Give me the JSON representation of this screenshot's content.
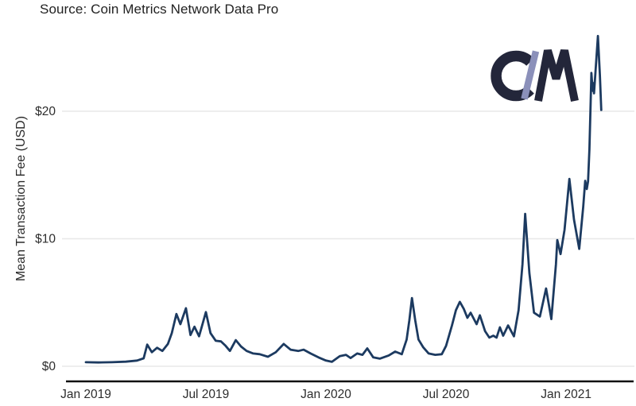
{
  "header": {
    "source_label": "Source: Coin Metrics Network Data Pro"
  },
  "logo": {
    "name": "Coin Metrics",
    "letters": [
      "C",
      "M"
    ],
    "letter_color": "#23263a",
    "slash_color": "#8b90ba"
  },
  "chart_data": {
    "type": "line",
    "ylabel": "Mean Transaction Fee (USD)",
    "xlabel": "",
    "grid": true,
    "legend": "none",
    "line_color": "#1c3a60",
    "grid_color": "#e8e8e8",
    "axis_color": "#111111",
    "tick_color": "#2d2d2d",
    "x_ticks": [
      "Jan 2019",
      "Jul 2019",
      "Jan 2020",
      "Jul 2020",
      "Jan 2021"
    ],
    "x_tick_dates": [
      "2019-01-01",
      "2019-07-01",
      "2020-01-01",
      "2020-07-01",
      "2021-01-01"
    ],
    "y_ticks": [
      "$0",
      "$10",
      "$20"
    ],
    "y_tick_values": [
      0,
      10,
      20
    ],
    "ylim": [
      0,
      27
    ],
    "x_domain": [
      "2019-01-01",
      "2021-02-24"
    ],
    "points": [
      [
        "2019-01-01",
        0.32
      ],
      [
        "2019-01-20",
        0.3
      ],
      [
        "2019-02-10",
        0.32
      ],
      [
        "2019-03-01",
        0.36
      ],
      [
        "2019-03-18",
        0.45
      ],
      [
        "2019-03-28",
        0.62
      ],
      [
        "2019-04-03",
        1.7
      ],
      [
        "2019-04-10",
        1.1
      ],
      [
        "2019-04-18",
        1.45
      ],
      [
        "2019-04-26",
        1.2
      ],
      [
        "2019-05-04",
        1.75
      ],
      [
        "2019-05-10",
        2.6
      ],
      [
        "2019-05-17",
        4.1
      ],
      [
        "2019-05-23",
        3.3
      ],
      [
        "2019-06-01",
        4.55
      ],
      [
        "2019-06-08",
        2.45
      ],
      [
        "2019-06-14",
        3.1
      ],
      [
        "2019-06-21",
        2.35
      ],
      [
        "2019-07-01",
        4.25
      ],
      [
        "2019-07-08",
        2.6
      ],
      [
        "2019-07-16",
        2.0
      ],
      [
        "2019-07-24",
        1.95
      ],
      [
        "2019-07-31",
        1.6
      ],
      [
        "2019-08-07",
        1.2
      ],
      [
        "2019-08-16",
        2.05
      ],
      [
        "2019-08-24",
        1.55
      ],
      [
        "2019-09-02",
        1.2
      ],
      [
        "2019-09-12",
        1.0
      ],
      [
        "2019-09-22",
        0.95
      ],
      [
        "2019-10-04",
        0.75
      ],
      [
        "2019-10-16",
        1.1
      ],
      [
        "2019-10-28",
        1.75
      ],
      [
        "2019-11-08",
        1.3
      ],
      [
        "2019-11-20",
        1.2
      ],
      [
        "2019-11-28",
        1.3
      ],
      [
        "2019-12-08",
        1.0
      ],
      [
        "2019-12-20",
        0.7
      ],
      [
        "2020-01-01",
        0.45
      ],
      [
        "2020-01-10",
        0.35
      ],
      [
        "2020-01-22",
        0.8
      ],
      [
        "2020-02-01",
        0.9
      ],
      [
        "2020-02-08",
        0.65
      ],
      [
        "2020-02-18",
        1.0
      ],
      [
        "2020-02-26",
        0.9
      ],
      [
        "2020-03-03",
        1.4
      ],
      [
        "2020-03-12",
        0.7
      ],
      [
        "2020-03-22",
        0.6
      ],
      [
        "2020-04-05",
        0.85
      ],
      [
        "2020-04-15",
        1.15
      ],
      [
        "2020-04-25",
        0.95
      ],
      [
        "2020-05-02",
        2.1
      ],
      [
        "2020-05-06",
        3.6
      ],
      [
        "2020-05-10",
        5.35
      ],
      [
        "2020-05-15",
        3.6
      ],
      [
        "2020-05-20",
        2.1
      ],
      [
        "2020-05-27",
        1.5
      ],
      [
        "2020-06-05",
        1.0
      ],
      [
        "2020-06-15",
        0.9
      ],
      [
        "2020-06-25",
        0.95
      ],
      [
        "2020-07-01",
        1.6
      ],
      [
        "2020-07-10",
        3.2
      ],
      [
        "2020-07-16",
        4.4
      ],
      [
        "2020-07-22",
        5.05
      ],
      [
        "2020-07-28",
        4.5
      ],
      [
        "2020-08-03",
        3.8
      ],
      [
        "2020-08-08",
        4.2
      ],
      [
        "2020-08-17",
        3.3
      ],
      [
        "2020-08-22",
        4.0
      ],
      [
        "2020-08-30",
        2.75
      ],
      [
        "2020-09-06",
        2.25
      ],
      [
        "2020-09-12",
        2.4
      ],
      [
        "2020-09-17",
        2.25
      ],
      [
        "2020-09-22",
        3.05
      ],
      [
        "2020-09-27",
        2.4
      ],
      [
        "2020-10-04",
        3.2
      ],
      [
        "2020-10-13",
        2.35
      ],
      [
        "2020-10-20",
        4.4
      ],
      [
        "2020-10-26",
        8.0
      ],
      [
        "2020-10-30",
        11.95
      ],
      [
        "2020-11-06",
        7.3
      ],
      [
        "2020-11-13",
        4.2
      ],
      [
        "2020-11-22",
        3.9
      ],
      [
        "2020-12-01",
        6.1
      ],
      [
        "2020-12-09",
        3.7
      ],
      [
        "2020-12-16",
        8.0
      ],
      [
        "2020-12-18",
        9.9
      ],
      [
        "2020-12-23",
        8.8
      ],
      [
        "2020-12-29",
        10.7
      ],
      [
        "2021-01-06",
        14.7
      ],
      [
        "2021-01-13",
        11.5
      ],
      [
        "2021-01-21",
        9.2
      ],
      [
        "2021-01-27",
        12.5
      ],
      [
        "2021-01-30",
        14.55
      ],
      [
        "2021-02-02",
        13.9
      ],
      [
        "2021-02-04",
        14.5
      ],
      [
        "2021-02-06",
        17.0
      ],
      [
        "2021-02-08",
        20.8
      ],
      [
        "2021-02-09",
        23.0
      ],
      [
        "2021-02-11",
        21.6
      ],
      [
        "2021-02-12",
        22.2
      ],
      [
        "2021-02-13",
        21.4
      ],
      [
        "2021-02-19",
        25.9
      ],
      [
        "2021-02-22",
        22.8
      ],
      [
        "2021-02-24",
        20.1
      ]
    ]
  }
}
